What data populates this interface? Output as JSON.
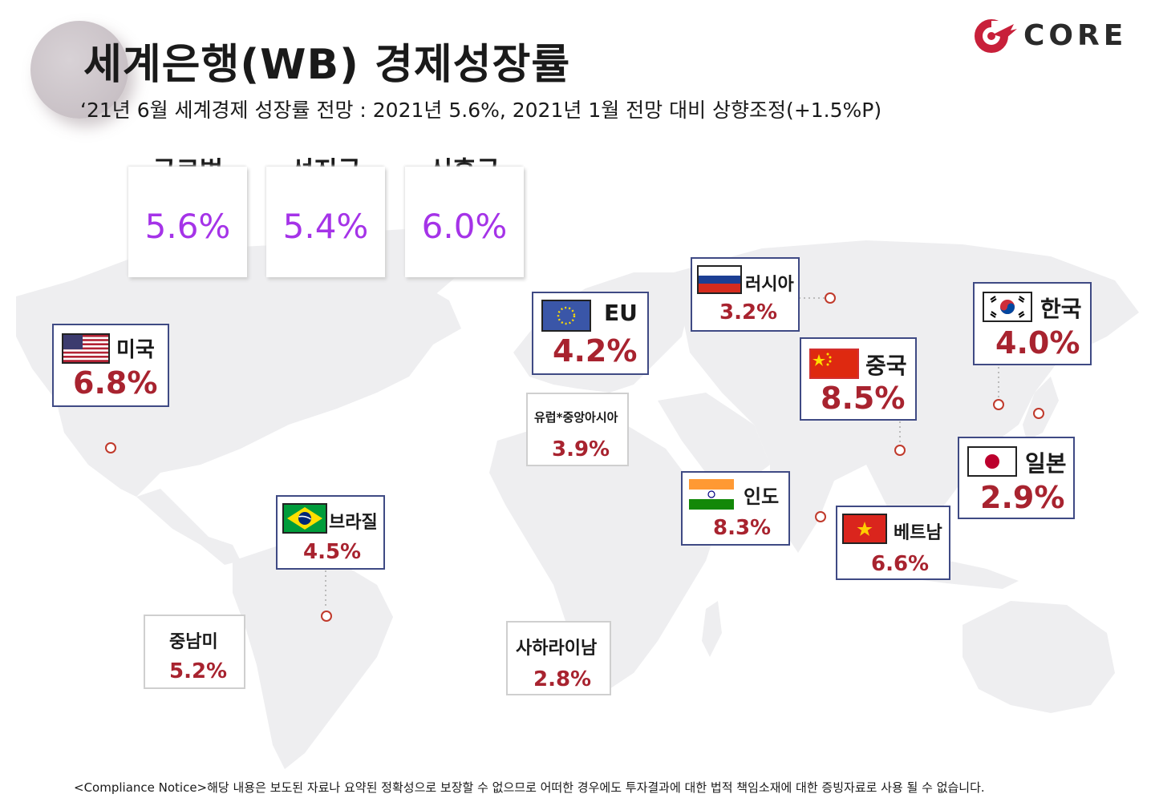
{
  "title": "세계은행(WB) 경제성장률",
  "subtitle": "‘21년 6월 세계경제 성장률 전망 : 2021년 5.6%, 2021년 1월 전망 대비 상향조정(+1.5%P)",
  "logo": {
    "text": "CORE",
    "color": "#c8203a"
  },
  "summary": [
    {
      "label": "글로벌",
      "value": "5.6%"
    },
    {
      "label": "선진국",
      "value": "5.4%"
    },
    {
      "label": "신흥국",
      "value": "6.0%"
    }
  ],
  "regions": {
    "usa": {
      "name": "미국",
      "value": "6.8%"
    },
    "eu": {
      "name": "EU",
      "value": "4.2%"
    },
    "russia": {
      "name": "러시아",
      "value": "3.2%"
    },
    "korea": {
      "name": "한국",
      "value": "4.0%"
    },
    "china": {
      "name": "중국",
      "value": "8.5%"
    },
    "europe_central_asia": {
      "name": "유럽*중앙아시아",
      "value": "3.9%"
    },
    "japan": {
      "name": "일본",
      "value": "2.9%"
    },
    "india": {
      "name": "인도",
      "value": "8.3%"
    },
    "vietnam": {
      "name": "베트남",
      "value": "6.6%"
    },
    "brazil": {
      "name": "브라질",
      "value": "4.5%"
    },
    "latam": {
      "name": "중남미",
      "value": "5.2%"
    },
    "ssa": {
      "name": "사하라이남",
      "value": "2.8%"
    }
  },
  "colors": {
    "summary_value": "#a533e8",
    "region_value": "#a8232f",
    "card_border": "#3f4a84",
    "map": "#eeeef0"
  },
  "footer": "<Compliance Notice>해당 내용은 보도된 자료나 요약된 정확성으로 보장할 수 없으므로 어떠한 경우에도 투자결과에 대한 법적 책임소재에 대한 증빙자료로 사용 될 수 없습니다."
}
